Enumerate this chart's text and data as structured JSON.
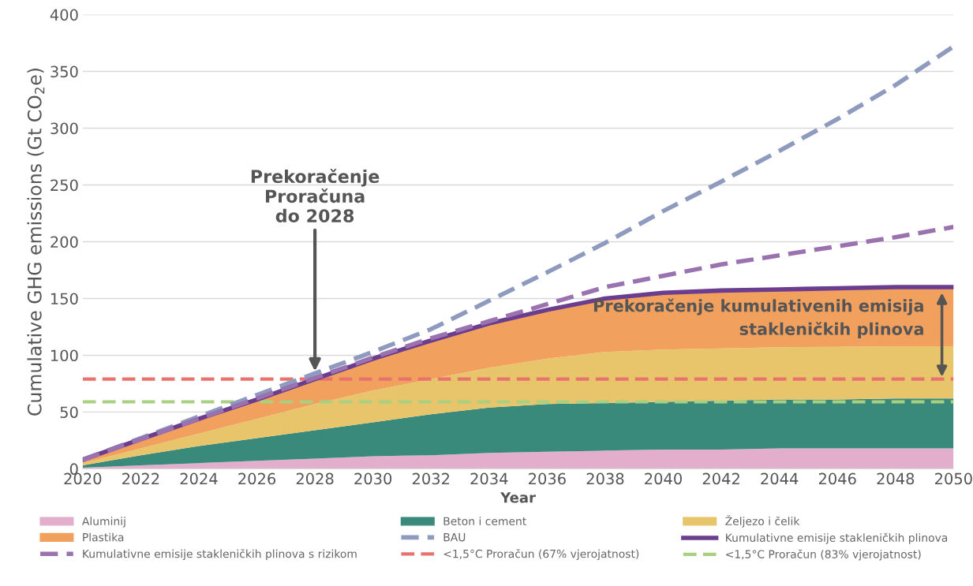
{
  "chart_data": {
    "type": "area",
    "stacked": true,
    "ylabel": "Cumulative GHG emissions (Gt CO$_{2}$e)",
    "xlabel": "Year",
    "x": [
      2020,
      2022,
      2024,
      2026,
      2028,
      2030,
      2032,
      2034,
      2036,
      2038,
      2040,
      2042,
      2044,
      2046,
      2048,
      2050
    ],
    "series": [
      {
        "name": "Aluminij",
        "color": "#e3aecb",
        "values": [
          1,
          3,
          5,
          7,
          9,
          11,
          12,
          14,
          15,
          16,
          17,
          17,
          18,
          18,
          18,
          18
        ]
      },
      {
        "name": "Beton i cement",
        "color": "#3a8a7c",
        "values": [
          2,
          9,
          15,
          20,
          25,
          30,
          36,
          40,
          42,
          42,
          42,
          43,
          43,
          43,
          44,
          44
        ]
      },
      {
        "name": "Željezo i čelik",
        "color": "#e8c46a",
        "values": [
          2,
          6,
          11,
          17,
          23,
          28,
          31,
          35,
          40,
          45,
          46,
          46,
          46,
          46.5,
          46,
          46
        ]
      },
      {
        "name": "Plastika",
        "color": "#f2a05e",
        "values": [
          3,
          8,
          13,
          17,
          22,
          28,
          34,
          39,
          43,
          47,
          50,
          51,
          51,
          51.5,
          52,
          52
        ]
      },
      {
        "name": "BAU",
        "type": "line",
        "line_style": "dashed",
        "color": "#8e9bbf",
        "values": [
          8,
          27,
          46,
          65,
          84,
          103,
          123,
          148,
          173,
          199,
          227,
          253,
          280,
          308,
          338,
          372
        ]
      },
      {
        "name": "Kumulativne emisije stakleničkih plinova",
        "type": "line",
        "line_style": "solid",
        "color": "#6a3d8e",
        "values": [
          8,
          26,
          44,
          61,
          79,
          97,
          113,
          128,
          140,
          150,
          155,
          157,
          158,
          159,
          160,
          160
        ]
      },
      {
        "name": "Kumulativne emisije stakleničkih plinova s rizikom",
        "type": "line",
        "line_style": "dashed",
        "color": "#9b72b0",
        "values": [
          8,
          26,
          44,
          62,
          80,
          98,
          115,
          130,
          145,
          160,
          170,
          180,
          188,
          196,
          204,
          213
        ]
      }
    ],
    "ref_lines": [
      {
        "axis": "y",
        "value": 79,
        "label": "<1,5°C Proračun (67% vjerojatnost)",
        "color": "#e8736c",
        "line_style": "dashed"
      },
      {
        "axis": "y",
        "value": 59,
        "label": "<1,5°C Proračun (83% vjerojatnost)",
        "color": "#a8d080",
        "line_style": "dashed"
      }
    ],
    "annotations": [
      {
        "text": "Prekoračenje\nProračuna\ndo 2028",
        "x": 2028,
        "y": 84
      },
      {
        "text": "Prekoračenje kumulativenih emisija\nstakleničkih plinova",
        "x": 2050,
        "y": 160
      }
    ],
    "xlim": [
      2020,
      2050
    ],
    "xticks": [
      2020,
      2022,
      2024,
      2026,
      2028,
      2030,
      2032,
      2034,
      2036,
      2038,
      2040,
      2042,
      2044,
      2046,
      2048,
      2050
    ],
    "ylim": [
      0,
      400
    ],
    "yticks": [
      0,
      50,
      100,
      150,
      200,
      250,
      300,
      350,
      400
    ],
    "grid": "y",
    "legend": "bottom"
  }
}
